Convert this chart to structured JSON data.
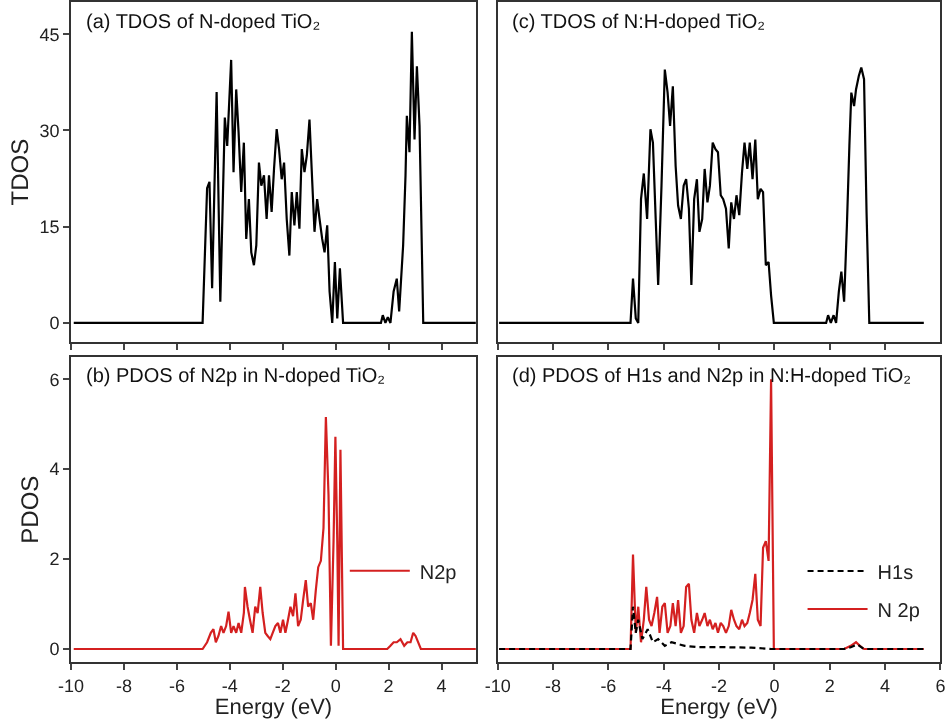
{
  "chart_data": [
    {
      "type": "line",
      "title": "(a) TDOS of N-doped TiO₂",
      "ylabel": "TDOS",
      "xlim": [
        -10,
        5.3
      ],
      "ylim": [
        -3,
        50
      ],
      "xticks": [
        {
          "value": -10,
          "label": null
        },
        {
          "value": -8,
          "label": null
        },
        {
          "value": -6,
          "label": null
        },
        {
          "value": -4,
          "label": null
        },
        {
          "value": -2,
          "label": null
        },
        {
          "value": 0,
          "label": null
        },
        {
          "value": 2,
          "label": null
        },
        {
          "value": 4,
          "label": null
        }
      ],
      "yticks": [
        0,
        15,
        30,
        45
      ],
      "tick_labels": "y",
      "series": [
        {
          "color": "#000000",
          "line_style": "solid",
          "x": [
            -9.9,
            -5.03,
            -4.86,
            -4.77,
            -4.67,
            -4.5,
            -4.36,
            -4.19,
            -4.1,
            -3.95,
            -3.86,
            -3.76,
            -3.67,
            -3.57,
            -3.47,
            -3.38,
            -3.28,
            -3.19,
            -3.09,
            -3.0,
            -2.9,
            -2.81,
            -2.71,
            -2.61,
            -2.52,
            -2.42,
            -2.33,
            -2.23,
            -2.14,
            -2.04,
            -1.95,
            -1.85,
            -1.75,
            -1.66,
            -1.56,
            -1.47,
            -1.37,
            -1.28,
            -1.18,
            -1.09,
            -0.99,
            -0.89,
            -0.8,
            -0.7,
            -0.61,
            -0.51,
            -0.42,
            -0.32,
            -0.23,
            -0.13,
            -0.03,
            0.06,
            0.16,
            0.28,
            1.71,
            1.78,
            1.88,
            1.97,
            2.07,
            2.19,
            2.31,
            2.4,
            2.55,
            2.64,
            2.69,
            2.79,
            2.88,
            2.98,
            3.07,
            3.17,
            3.31,
            5.3
          ],
          "values": [
            0,
            0,
            21,
            22,
            5.4,
            36,
            3.3,
            32,
            27.6,
            41,
            23.5,
            36.4,
            29.7,
            20.4,
            28.1,
            13.1,
            19.3,
            11,
            9,
            12.1,
            25,
            21.4,
            23,
            16.2,
            23,
            17.3,
            24,
            30.2,
            27.1,
            22.4,
            25,
            16.2,
            10.5,
            20.4,
            15.2,
            20.4,
            14.7,
            27.1,
            23.5,
            26.1,
            31.7,
            22.4,
            14.2,
            19.3,
            16.2,
            13.1,
            11,
            15.2,
            4.9,
            0,
            9.5,
            0.7,
            8.5,
            0,
            0,
            1.2,
            0,
            0.9,
            0,
            4.9,
            6.9,
            1.8,
            12.1,
            23,
            32.3,
            26.6,
            45.4,
            28.6,
            40,
            30.7,
            0,
            0
          ]
        }
      ]
    },
    {
      "type": "line",
      "title": "(c) TDOS of N:H-doped TiO₂",
      "xlim": [
        -10,
        6
      ],
      "ylim": [
        -3,
        50
      ],
      "xticks": [
        {
          "value": -10,
          "label": null
        },
        {
          "value": -8,
          "label": null
        },
        {
          "value": -6,
          "label": null
        },
        {
          "value": -4,
          "label": null
        },
        {
          "value": -2,
          "label": null
        },
        {
          "value": 0,
          "label": null
        },
        {
          "value": 2,
          "label": null
        },
        {
          "value": 4,
          "label": null
        }
      ],
      "tick_labels": false,
      "series": [
        {
          "color": "#000000",
          "line_style": "solid",
          "x": [
            -9.95,
            -5.2,
            -5.11,
            -5.01,
            -4.92,
            -4.82,
            -4.72,
            -4.6,
            -4.48,
            -4.39,
            -4.29,
            -4.2,
            -4.08,
            -3.96,
            -3.86,
            -3.77,
            -3.67,
            -3.57,
            -3.48,
            -3.38,
            -3.28,
            -3.19,
            -3.09,
            -3.0,
            -2.9,
            -2.8,
            -2.71,
            -2.61,
            -2.52,
            -2.42,
            -2.33,
            -2.23,
            -2.13,
            -2.04,
            -1.94,
            -1.85,
            -1.75,
            -1.65,
            -1.56,
            -1.46,
            -1.37,
            -1.27,
            -1.17,
            -1.08,
            -0.98,
            -0.89,
            -0.79,
            -0.69,
            -0.6,
            -0.5,
            -0.41,
            -0.31,
            -0.21,
            -0.12,
            -0.02,
            1.87,
            1.94,
            2.04,
            2.14,
            2.23,
            2.33,
            2.42,
            2.52,
            2.62,
            2.71,
            2.78,
            2.88,
            2.95,
            3.05,
            3.14,
            3.24,
            3.33,
            3.43,
            5.4
          ],
          "values": [
            0,
            0,
            6.9,
            0.7,
            0,
            19.3,
            23.3,
            16.2,
            30.2,
            28.1,
            16.2,
            5.9,
            21.4,
            39.5,
            35.9,
            30.7,
            36.9,
            24.5,
            18.3,
            16.2,
            21.4,
            22.4,
            17.8,
            5.9,
            19.3,
            22.4,
            14.2,
            16.2,
            24,
            18.8,
            21.4,
            28.1,
            27.1,
            26.6,
            19.9,
            19.3,
            17.8,
            11.6,
            18.8,
            16.2,
            19.9,
            16.8,
            23.5,
            28.1,
            24,
            28.1,
            22.4,
            28.6,
            19.3,
            20.9,
            20.4,
            9,
            9.5,
            4.3,
            0,
            0,
            1.2,
            0,
            1.2,
            0,
            4.9,
            8,
            3.3,
            15.2,
            27.6,
            35.9,
            33.8,
            36.4,
            38.5,
            39.8,
            38,
            17.3,
            0,
            0
          ]
        }
      ]
    },
    {
      "type": "line",
      "title": "(b) PDOS of N2p in N-doped TiO₂",
      "xlabel": "Energy (eV)",
      "ylabel": "PDOS",
      "xlim": [
        -10,
        5.3
      ],
      "ylim": [
        -0.3,
        6.5
      ],
      "xticks": [
        -10,
        -8,
        -6,
        -4,
        -2,
        0,
        2,
        4
      ],
      "yticks": [
        0,
        2,
        4,
        6
      ],
      "legend": "right",
      "series": [
        {
          "name": "N2p",
          "color": "#d42020",
          "line_style": "solid",
          "x": [
            -9.9,
            -5.03,
            -4.86,
            -4.72,
            -4.62,
            -4.53,
            -4.43,
            -4.33,
            -4.24,
            -4.14,
            -4.05,
            -3.95,
            -3.86,
            -3.76,
            -3.67,
            -3.57,
            -3.47,
            -3.43,
            -3.33,
            -3.24,
            -3.14,
            -3.04,
            -2.95,
            -2.85,
            -2.76,
            -2.66,
            -2.57,
            -2.47,
            -2.38,
            -2.28,
            -2.18,
            -2.09,
            -1.99,
            -1.9,
            -1.8,
            -1.71,
            -1.61,
            -1.52,
            -1.42,
            -1.32,
            -1.23,
            -1.13,
            -1.04,
            -0.94,
            -0.85,
            -0.75,
            -0.66,
            -0.56,
            -0.46,
            -0.37,
            -0.27,
            -0.18,
            -0.08,
            -0.01,
            0.06,
            0.11,
            0.18,
            0.28,
            1.95,
            2.07,
            2.19,
            2.31,
            2.45,
            2.59,
            2.71,
            2.83,
            2.93,
            3.02,
            3.22,
            5.3
          ],
          "values": [
            0,
            0,
            0.15,
            0.36,
            0.44,
            0.15,
            0.29,
            0.51,
            0.36,
            0.51,
            0.83,
            0.36,
            0.51,
            0.36,
            0.58,
            0.36,
            0.8,
            1.38,
            0.94,
            0.65,
            0.36,
            0.94,
            0.8,
            1.38,
            0.8,
            0.36,
            0.29,
            0.22,
            0.36,
            0.51,
            0.58,
            0.36,
            0.65,
            0.36,
            0.65,
            0.94,
            0.73,
            1.24,
            0.51,
            0.65,
            1.09,
            1.53,
            0.94,
            1.02,
            0.65,
            1.31,
            1.82,
            1.96,
            2.69,
            5.16,
            3.42,
            0.07,
            2.4,
            4.72,
            2.4,
            0.07,
            4.43,
            0,
            0,
            0.07,
            0.15,
            0.15,
            0.22,
            0.07,
            0.15,
            0.15,
            0.36,
            0.29,
            0,
            0
          ]
        }
      ]
    },
    {
      "type": "line",
      "title": "(d) PDOS of H1s and N2p in N:H-doped TiO₂",
      "xlabel": "Energy (eV)",
      "xlim": [
        -10,
        6
      ],
      "ylim": [
        -0.3,
        6.5
      ],
      "xticks": [
        -10,
        -8,
        -6,
        -4,
        -2,
        0,
        2,
        4,
        6
      ],
      "tick_labels": "x",
      "legend": "bottom right",
      "series": [
        {
          "name": "H1s",
          "color": "#000000",
          "line_style": "dashed",
          "x": [
            -9.95,
            -5.2,
            -5.11,
            -5.01,
            -4.92,
            -4.77,
            -4.58,
            -4.39,
            -4.2,
            -3.96,
            -3.72,
            -3.24,
            -2.76,
            -1.8,
            -0.84,
            -0.12,
            2.52,
            2.76,
            3.0,
            3.24,
            5.4
          ],
          "values": [
            0,
            0,
            0.94,
            0.36,
            0.65,
            0.22,
            0.44,
            0.15,
            0.22,
            0.07,
            0.15,
            0.07,
            0.04,
            0.04,
            0.03,
            0,
            0,
            0.04,
            0.1,
            0,
            0
          ]
        },
        {
          "name": "N 2p",
          "color": "#d42020",
          "line_style": "solid",
          "x": [
            -9.95,
            -5.2,
            -5.11,
            -5.01,
            -4.92,
            -4.82,
            -4.72,
            -4.63,
            -4.53,
            -4.44,
            -4.34,
            -4.24,
            -4.15,
            -4.05,
            -3.96,
            -3.86,
            -3.76,
            -3.67,
            -3.57,
            -3.48,
            -3.38,
            -3.28,
            -3.19,
            -3.09,
            -3.0,
            -2.9,
            -2.8,
            -2.71,
            -2.61,
            -2.52,
            -2.42,
            -2.33,
            -2.23,
            -2.13,
            -2.04,
            -1.94,
            -1.85,
            -1.75,
            -1.65,
            -1.56,
            -1.46,
            -1.37,
            -1.27,
            -1.17,
            -1.08,
            -0.98,
            -0.89,
            -0.79,
            -0.69,
            -0.6,
            -0.5,
            -0.41,
            -0.31,
            -0.21,
            -0.12,
            -0.02,
            2.52,
            2.76,
            2.95,
            3.09,
            3.24,
            5.4
          ],
          "values": [
            0,
            0,
            2.1,
            0.36,
            0.94,
            0.15,
            0.65,
            1.38,
            0.65,
            0.51,
            0.8,
            1.16,
            0.36,
            0.94,
            1.02,
            0.36,
            0.51,
            1.02,
            0.51,
            1.09,
            0.36,
            0.51,
            1.38,
            1.45,
            0.65,
            0.36,
            0.8,
            0.51,
            0.65,
            0.8,
            0.51,
            0.65,
            0.44,
            0.58,
            0.36,
            0.58,
            0.51,
            0.36,
            0.51,
            0.87,
            0.65,
            0.51,
            0.44,
            0.65,
            0.51,
            0.58,
            0.8,
            1.09,
            1.67,
            0.65,
            0.51,
            2.25,
            2.4,
            1.96,
            6.0,
            0,
            0,
            0.07,
            0.15,
            0.07,
            0,
            0
          ]
        }
      ]
    }
  ]
}
